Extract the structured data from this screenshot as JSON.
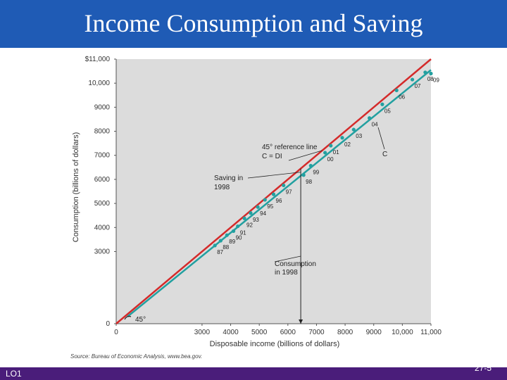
{
  "slide": {
    "title": "Income Consumption and Saving",
    "footer_left": "LO1",
    "page_number": "27-5",
    "colors": {
      "title_bar": "#1f5bb5",
      "footer_bar": "#4a1d7a",
      "plot_bg": "#dcdcdc",
      "reference_line": "#d42a2a",
      "consumption_line": "#22a0a0",
      "points": "#22a0a0"
    }
  },
  "chart_data": {
    "type": "scatter",
    "xlabel": "Disposable income (billions of dollars)",
    "ylabel": "Consumption (billions of dollars)",
    "xlim": [
      0,
      11000
    ],
    "ylim": [
      0,
      11000
    ],
    "x_ticks": [
      {
        "value": 0,
        "label": "0"
      },
      {
        "value": 3000,
        "label": "3000"
      },
      {
        "value": 4000,
        "label": "4000"
      },
      {
        "value": 5000,
        "label": "5000"
      },
      {
        "value": 6000,
        "label": "6000"
      },
      {
        "value": 7000,
        "label": "7000"
      },
      {
        "value": 8000,
        "label": "8000"
      },
      {
        "value": 9000,
        "label": "9000"
      },
      {
        "value": 10000,
        "label": "10,000"
      },
      {
        "value": 11000,
        "label": "11,000"
      }
    ],
    "y_ticks": [
      {
        "value": 0,
        "label": "0"
      },
      {
        "value": 3000,
        "label": "3000"
      },
      {
        "value": 4000,
        "label": "4000"
      },
      {
        "value": 5000,
        "label": "5000"
      },
      {
        "value": 6000,
        "label": "6000"
      },
      {
        "value": 7000,
        "label": "7000"
      },
      {
        "value": 8000,
        "label": "8000"
      },
      {
        "value": 9000,
        "label": "9000"
      },
      {
        "value": 10000,
        "label": "10,000"
      },
      {
        "value": 11000,
        "label": "$11,000"
      }
    ],
    "points": [
      {
        "label": "87",
        "x": 3450,
        "y": 3250
      },
      {
        "label": "88",
        "x": 3650,
        "y": 3450
      },
      {
        "label": "89",
        "x": 3870,
        "y": 3680
      },
      {
        "label": "90",
        "x": 4100,
        "y": 3850
      },
      {
        "label": "91",
        "x": 4250,
        "y": 4050
      },
      {
        "label": "92",
        "x": 4480,
        "y": 4380
      },
      {
        "label": "93",
        "x": 4700,
        "y": 4600
      },
      {
        "label": "94",
        "x": 4950,
        "y": 4850
      },
      {
        "label": "95",
        "x": 5200,
        "y": 5150
      },
      {
        "label": "96",
        "x": 5500,
        "y": 5380
      },
      {
        "label": "97",
        "x": 5850,
        "y": 5750
      },
      {
        "label": "98",
        "x": 6550,
        "y": 6180
      },
      {
        "label": "99",
        "x": 6800,
        "y": 6570
      },
      {
        "label": "00",
        "x": 7300,
        "y": 7110
      },
      {
        "label": "01",
        "x": 7500,
        "y": 7400
      },
      {
        "label": "02",
        "x": 7900,
        "y": 7730
      },
      {
        "label": "03",
        "x": 8300,
        "y": 8070
      },
      {
        "label": "04",
        "x": 8850,
        "y": 8550
      },
      {
        "label": "05",
        "x": 9300,
        "y": 9120
      },
      {
        "label": "06",
        "x": 9800,
        "y": 9700
      },
      {
        "label": "07",
        "x": 10350,
        "y": 10150
      },
      {
        "label": "08",
        "x": 10800,
        "y": 10450
      },
      {
        "label": "09",
        "x": 11000,
        "y": 10400
      }
    ],
    "reference_line": {
      "from": [
        0,
        0
      ],
      "to": [
        11000,
        11000
      ]
    },
    "consumption_line": {
      "from": [
        400,
        300
      ],
      "to": [
        11000,
        10550
      ]
    },
    "annotations": {
      "ref_line": [
        "45° reference line",
        "C = DI"
      ],
      "c_label": "C",
      "saving": [
        "Saving in",
        "1998"
      ],
      "consumption": [
        "Consumption",
        "in 1998"
      ],
      "angle": "45°"
    },
    "source": "Source: Bureau of Economic Analysis, www.bea.gov."
  }
}
